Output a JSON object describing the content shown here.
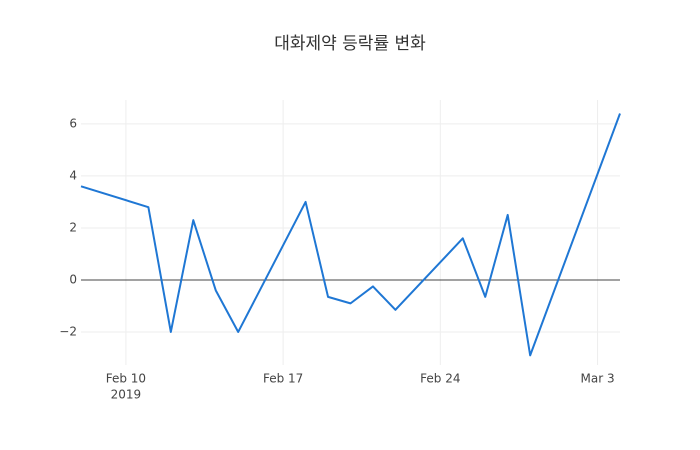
{
  "chart_data": {
    "type": "line",
    "title": "대화제약 등락률 변화",
    "x": [
      "2019-02-08",
      "2019-02-11",
      "2019-02-12",
      "2019-02-13",
      "2019-02-14",
      "2019-02-15",
      "2019-02-18",
      "2019-02-19",
      "2019-02-20",
      "2019-02-21",
      "2019-02-22",
      "2019-02-25",
      "2019-02-26",
      "2019-02-27",
      "2019-02-28",
      "2019-03-04"
    ],
    "series": [
      {
        "color": "#1f77d4",
        "values": [
          3.6,
          2.8,
          -2.0,
          2.3,
          -0.4,
          -2.0,
          3.0,
          -0.65,
          -0.9,
          -0.25,
          -1.15,
          1.6,
          -0.65,
          2.5,
          -2.9,
          6.4
        ]
      }
    ],
    "xlim": [
      "2019-02-08",
      "2019-03-04"
    ],
    "xticks": [
      {
        "value": "2019-02-10",
        "label": "Feb 10",
        "sublabel": "2019"
      },
      {
        "value": "2019-02-17",
        "label": "Feb 17"
      },
      {
        "value": "2019-02-24",
        "label": "Feb 24"
      },
      {
        "value": "2019-03-03",
        "label": "Mar 3"
      }
    ],
    "ylim": [
      -3.27,
      6.92
    ],
    "yticks": [
      {
        "value": -2,
        "label": "−2"
      },
      0,
      2,
      4,
      6
    ],
    "grid": true,
    "zeroline": true
  }
}
